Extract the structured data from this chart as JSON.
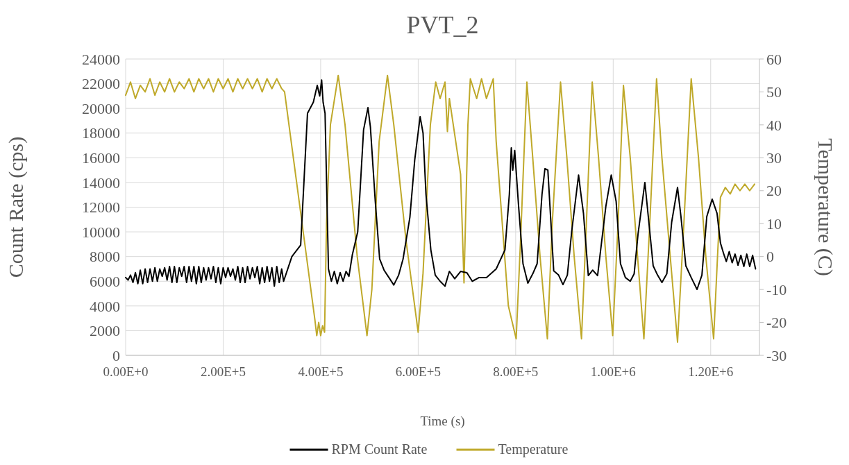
{
  "chart_data": {
    "type": "line",
    "title": "PVT_2",
    "xlabel": "Time (s)",
    "ylabel": "Count Rate (cps)",
    "y2label": "Temperature (C)",
    "xlim": [
      0,
      1300000
    ],
    "xticks": [
      {
        "value": 0,
        "label": "0.00E+0"
      },
      {
        "value": 200000,
        "label": "2.00E+5"
      },
      {
        "value": 400000,
        "label": "4.00E+5"
      },
      {
        "value": 600000,
        "label": "6.00E+5"
      },
      {
        "value": 800000,
        "label": "8.00E+5"
      },
      {
        "value": 1000000,
        "label": "1.00E+6"
      },
      {
        "value": 1200000,
        "label": "1.20E+6"
      }
    ],
    "ylim": [
      0,
      24000
    ],
    "yticks": [
      0,
      2000,
      4000,
      6000,
      8000,
      10000,
      12000,
      14000,
      16000,
      18000,
      20000,
      22000,
      24000
    ],
    "y2lim": [
      -30,
      60
    ],
    "y2ticks": [
      -30,
      -20,
      -10,
      0,
      10,
      20,
      30,
      40,
      50,
      60
    ],
    "grid": true,
    "legend": "bottom",
    "line_style": "solid",
    "marker": "none",
    "series": [
      {
        "name": "RPM Count Rate",
        "color": "#000000",
        "x": [
          0,
          5000,
          10000,
          15000,
          20000,
          25000,
          30000,
          35000,
          40000,
          45000,
          50000,
          55000,
          60000,
          65000,
          70000,
          75000,
          80000,
          85000,
          90000,
          95000,
          100000,
          105000,
          110000,
          115000,
          120000,
          125000,
          130000,
          135000,
          140000,
          145000,
          150000,
          155000,
          160000,
          165000,
          170000,
          175000,
          180000,
          185000,
          190000,
          195000,
          200000,
          205000,
          210000,
          215000,
          220000,
          225000,
          230000,
          235000,
          240000,
          245000,
          250000,
          255000,
          260000,
          265000,
          270000,
          275000,
          280000,
          285000,
          290000,
          295000,
          300000,
          305000,
          310000,
          315000,
          320000,
          324000,
          341000,
          359000,
          373000,
          385000,
          393000,
          398000,
          402000,
          405000,
          409000,
          416000,
          422000,
          428000,
          434000,
          440000,
          446000,
          452000,
          458000,
          465000,
          476000,
          488000,
          497000,
          502000,
          512000,
          521000,
          530000,
          540000,
          550000,
          560000,
          569000,
          583000,
          593000,
          604000,
          610000,
          616000,
          626000,
          635000,
          645000,
          655000,
          664000,
          675000,
          687000,
          700000,
          711000,
          725000,
          740000,
          760000,
          778000,
          787000,
          791000,
          794000,
          798000,
          806000,
          815000,
          825000,
          835000,
          844000,
          854000,
          860000,
          866000,
          878000,
          888000,
          897000,
          906000,
          915000,
          929000,
          934000,
          939000,
          949000,
          958000,
          968000,
          985000,
          996000,
          1006000,
          1015000,
          1025000,
          1035000,
          1043000,
          1051000,
          1065000,
          1072000,
          1082000,
          1091000,
          1100000,
          1110000,
          1120000,
          1132000,
          1139000,
          1149000,
          1160000,
          1172000,
          1182000,
          1192000,
          1203000,
          1213000,
          1220000,
          1226000,
          1232000,
          1238000,
          1244000,
          1250000,
          1256000,
          1262000,
          1268000,
          1274000,
          1280000,
          1286000,
          1292000
        ],
        "values": [
          6300,
          6100,
          6500,
          5900,
          6700,
          5800,
          6900,
          5800,
          7000,
          5900,
          7000,
          6000,
          7100,
          6000,
          7000,
          6400,
          7100,
          6100,
          7200,
          5900,
          7200,
          5900,
          7100,
          6400,
          7200,
          5900,
          7200,
          6000,
          7200,
          5800,
          7200,
          5900,
          7100,
          6100,
          7100,
          6200,
          7200,
          5900,
          7100,
          5800,
          7100,
          6300,
          7100,
          6400,
          7000,
          6100,
          7200,
          5900,
          7100,
          5900,
          7200,
          6200,
          7100,
          6300,
          7200,
          5800,
          7100,
          5900,
          7200,
          6000,
          7100,
          5600,
          7200,
          5900,
          7000,
          6000,
          8000,
          8930,
          19600,
          20500,
          21860,
          21000,
          22300,
          20500,
          19600,
          7000,
          6000,
          6800,
          5800,
          6700,
          6000,
          6800,
          6400,
          8150,
          10000,
          18260,
          20060,
          18500,
          12480,
          7800,
          6900,
          6300,
          5700,
          6500,
          7800,
          11180,
          15850,
          19330,
          18000,
          13040,
          8540,
          6500,
          6000,
          5600,
          6800,
          6200,
          6800,
          6690,
          6000,
          6300,
          6300,
          7000,
          8540,
          13040,
          16800,
          15000,
          16600,
          12080,
          7420,
          5850,
          6600,
          7420,
          13040,
          15120,
          15000,
          6850,
          6500,
          5730,
          6500,
          10060,
          14600,
          13000,
          11520,
          6460,
          6900,
          6460,
          12080,
          14600,
          12480,
          7420,
          6300,
          6000,
          6600,
          9830,
          14000,
          11240,
          7250,
          6500,
          5900,
          6600,
          10790,
          13600,
          11240,
          7250,
          6300,
          5340,
          6500,
          11240,
          12650,
          11500,
          9100,
          8300,
          7600,
          8400,
          7500,
          8200,
          7300,
          8100,
          7200,
          8200,
          7200,
          8100,
          7000
        ]
      },
      {
        "name": "Temperature",
        "color": "#bfa92a",
        "axis": "y2",
        "x": [
          0,
          10000,
          20000,
          30000,
          40000,
          50000,
          60000,
          70000,
          80000,
          90000,
          100000,
          110000,
          120000,
          130000,
          140000,
          150000,
          160000,
          170000,
          180000,
          190000,
          200000,
          210000,
          220000,
          230000,
          240000,
          250000,
          260000,
          270000,
          280000,
          290000,
          300000,
          310000,
          320000,
          326000,
          388000,
          392000,
          396000,
          400000,
          404000,
          408000,
          412000,
          420000,
          436000,
          450000,
          475000,
          495000,
          505000,
          520000,
          537000,
          550000,
          575000,
          600000,
          610000,
          625000,
          636000,
          645000,
          655000,
          660000,
          664000,
          687000,
          694000,
          702000,
          707000,
          720000,
          730000,
          740000,
          754000,
          760000,
          785000,
          801000,
          810000,
          823000,
          835000,
          850000,
          865000,
          875000,
          892000,
          905000,
          920000,
          935000,
          945000,
          957000,
          970000,
          985000,
          999000,
          1010000,
          1021000,
          1035000,
          1050000,
          1063000,
          1075000,
          1089000,
          1100000,
          1117000,
          1132000,
          1145000,
          1160000,
          1175000,
          1190000,
          1206000,
          1214000,
          1220000,
          1230000,
          1240000,
          1250000,
          1260000,
          1270000,
          1280000,
          1290000
        ],
        "values": [
          49,
          53,
          48,
          52,
          50,
          54,
          49,
          53,
          50,
          54,
          50,
          53,
          51,
          54,
          50,
          54,
          51,
          54,
          50,
          54,
          51,
          54,
          50,
          54,
          51,
          54,
          51,
          54,
          50,
          54,
          51,
          54,
          51,
          50,
          -19,
          -24,
          -20,
          -24,
          -21,
          -23,
          10,
          40,
          55,
          40,
          0,
          -24,
          -10,
          35,
          55,
          40,
          5,
          -23,
          -5,
          40,
          53,
          48,
          53,
          38,
          48,
          25,
          -8,
          40,
          54,
          48,
          54,
          48,
          54,
          35,
          -15,
          -25,
          5,
          53,
          30,
          0,
          -25,
          10,
          53,
          30,
          0,
          -25,
          10,
          53,
          30,
          0,
          -24,
          10,
          52,
          30,
          0,
          -25,
          10,
          54,
          30,
          0,
          -26,
          10,
          54,
          30,
          0,
          -25,
          0,
          18,
          21,
          19,
          22,
          20,
          22,
          20,
          22
        ]
      }
    ]
  }
}
